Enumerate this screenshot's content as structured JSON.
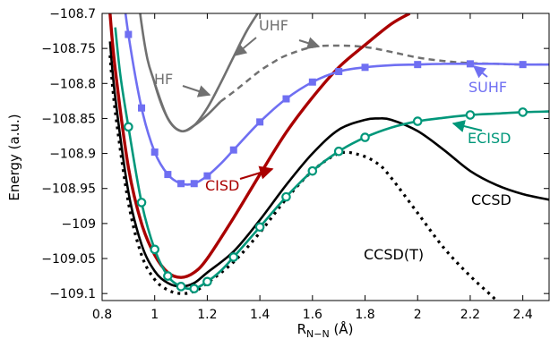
{
  "chart_data": {
    "type": "line",
    "xlabel": "R",
    "xlabel_sub": "N−N",
    "xlabel_unit": " (Å)",
    "ylabel": "Energy (a.u.)",
    "xlim": [
      0.8,
      2.5
    ],
    "ylim": [
      -109.11,
      -108.7
    ],
    "xticks": [
      0.8,
      1.0,
      1.2,
      1.4,
      1.6,
      1.8,
      2.0,
      2.2,
      2.4
    ],
    "xtick_labels": [
      "0.8",
      "1",
      "1.2",
      "1.4",
      "1.6",
      "1.8",
      "2",
      "2.2",
      "2.4"
    ],
    "yticks": [
      -108.7,
      -108.75,
      -108.8,
      -108.85,
      -108.9,
      -108.95,
      -109.0,
      -109.05,
      -109.1
    ],
    "ytick_labels": [
      "−108.7",
      "−108.75",
      "−108.8",
      "−108.85",
      "−108.9",
      "−108.95",
      "−109",
      "−109.05",
      "−109.1"
    ],
    "grid": false,
    "series": [
      {
        "name": "HF",
        "color": "#707070",
        "style": "solid",
        "marker": "none",
        "x": [
          0.85,
          0.95,
          1.0,
          1.05,
          1.1,
          1.15,
          1.2,
          1.25
        ],
        "y": [
          -108.4,
          -108.715,
          -108.8,
          -108.85,
          -108.868,
          -108.86,
          -108.845,
          -108.826
        ]
      },
      {
        "name": "UHF",
        "color": "#707070",
        "style": "solid",
        "marker": "none",
        "x": [
          1.0,
          1.05,
          1.1,
          1.15,
          1.2,
          1.25,
          1.3,
          1.35,
          1.4,
          1.45
        ],
        "y": [
          -108.8,
          -108.85,
          -108.868,
          -108.86,
          -108.835,
          -108.8,
          -108.762,
          -108.725,
          -108.695,
          -108.665
        ]
      },
      {
        "name": "UHF-dashed",
        "color": "#707070",
        "style": "dashed",
        "marker": "none",
        "x": [
          1.25,
          1.3,
          1.35,
          1.4,
          1.45,
          1.5,
          1.6,
          1.7,
          1.8,
          1.9,
          2.0,
          2.1,
          2.2,
          2.3,
          2.4,
          2.5
        ],
        "y": [
          -108.826,
          -108.812,
          -108.797,
          -108.782,
          -108.77,
          -108.76,
          -108.748,
          -108.746,
          -108.748,
          -108.755,
          -108.763,
          -108.768,
          -108.771,
          -108.772,
          -108.773,
          -108.773
        ]
      },
      {
        "name": "SUHF",
        "color": "#6f6ff2",
        "style": "solid",
        "marker": "square",
        "x": [
          0.9,
          0.95,
          1.0,
          1.05,
          1.1,
          1.15,
          1.2,
          1.3,
          1.4,
          1.5,
          1.6,
          1.7,
          1.8,
          2.0,
          2.2,
          2.4
        ],
        "y": [
          -108.73,
          -108.835,
          -108.898,
          -108.93,
          -108.943,
          -108.943,
          -108.932,
          -108.895,
          -108.855,
          -108.822,
          -108.798,
          -108.783,
          -108.777,
          -108.773,
          -108.772,
          -108.773
        ],
        "curve_x": [
          0.87,
          0.9,
          0.95,
          1.0,
          1.05,
          1.1,
          1.15,
          1.2,
          1.25,
          1.3,
          1.4,
          1.5,
          1.6,
          1.7,
          1.8,
          1.9,
          2.0,
          2.1,
          2.2,
          2.3,
          2.4,
          2.5
        ],
        "curve_y": [
          -108.64,
          -108.73,
          -108.835,
          -108.898,
          -108.93,
          -108.943,
          -108.943,
          -108.932,
          -108.915,
          -108.895,
          -108.855,
          -108.822,
          -108.798,
          -108.783,
          -108.777,
          -108.774,
          -108.773,
          -108.772,
          -108.772,
          -108.772,
          -108.773,
          -108.773
        ]
      },
      {
        "name": "CISD",
        "color": "#aa0000",
        "style": "solid",
        "marker": "none",
        "x": [
          0.83,
          0.85,
          0.9,
          0.95,
          1.0,
          1.05,
          1.1,
          1.15,
          1.2,
          1.3,
          1.4,
          1.5,
          1.6,
          1.7,
          1.8,
          1.9,
          1.97
        ],
        "y": [
          -108.7,
          -108.78,
          -108.92,
          -109.0,
          -109.045,
          -109.07,
          -109.077,
          -109.07,
          -109.05,
          -108.992,
          -108.93,
          -108.87,
          -108.82,
          -108.777,
          -108.745,
          -108.715,
          -108.7
        ]
      },
      {
        "name": "CCSD",
        "color": "#000000",
        "style": "solid",
        "marker": "none",
        "x": [
          0.83,
          0.85,
          0.9,
          0.95,
          1.0,
          1.05,
          1.1,
          1.15,
          1.2,
          1.3,
          1.4,
          1.5,
          1.6,
          1.7,
          1.8,
          1.85,
          1.9,
          2.0,
          2.1,
          2.2,
          2.3,
          2.4,
          2.5
        ],
        "y": [
          -108.74,
          -108.82,
          -108.955,
          -109.03,
          -109.068,
          -109.085,
          -109.09,
          -109.085,
          -109.07,
          -109.04,
          -108.995,
          -108.945,
          -108.9,
          -108.866,
          -108.852,
          -108.85,
          -108.852,
          -108.868,
          -108.895,
          -108.925,
          -108.945,
          -108.958,
          -108.966
        ]
      },
      {
        "name": "CCSD(T)",
        "color": "#000000",
        "style": "dotted",
        "marker": "none",
        "x": [
          0.83,
          0.85,
          0.9,
          0.95,
          1.0,
          1.05,
          1.1,
          1.15,
          1.2,
          1.3,
          1.4,
          1.5,
          1.6,
          1.7,
          1.78,
          1.85,
          1.9,
          2.0,
          2.1,
          2.2,
          2.3,
          2.4
        ],
        "y": [
          -108.76,
          -108.84,
          -108.97,
          -109.045,
          -109.08,
          -109.095,
          -109.1,
          -109.097,
          -109.085,
          -109.055,
          -109.013,
          -108.965,
          -108.925,
          -108.9,
          -108.902,
          -108.915,
          -108.935,
          -108.985,
          -109.035,
          -109.075,
          -109.11,
          -109.15
        ]
      },
      {
        "name": "ECISD",
        "color": "#00977a",
        "style": "solid",
        "marker": "circle",
        "x": [
          0.9,
          0.95,
          1.0,
          1.05,
          1.1,
          1.15,
          1.2,
          1.3,
          1.4,
          1.5,
          1.6,
          1.7,
          1.8,
          2.0,
          2.2,
          2.4
        ],
        "y": [
          -108.862,
          -108.97,
          -109.037,
          -109.075,
          -109.09,
          -109.093,
          -109.083,
          -109.048,
          -109.005,
          -108.962,
          -108.925,
          -108.897,
          -108.877,
          -108.854,
          -108.845,
          -108.841
        ],
        "curve_x": [
          0.85,
          0.87,
          0.9,
          0.95,
          1.0,
          1.05,
          1.1,
          1.15,
          1.2,
          1.25,
          1.3,
          1.4,
          1.5,
          1.6,
          1.7,
          1.8,
          1.9,
          2.0,
          2.1,
          2.2,
          2.3,
          2.4,
          2.5
        ],
        "curve_y": [
          -108.72,
          -108.79,
          -108.862,
          -108.97,
          -109.037,
          -109.075,
          -109.09,
          -109.093,
          -109.083,
          -109.068,
          -109.048,
          -109.005,
          -108.962,
          -108.925,
          -108.897,
          -108.877,
          -108.863,
          -108.854,
          -108.849,
          -108.845,
          -108.843,
          -108.841,
          -108.84
        ]
      }
    ],
    "labels": [
      {
        "text": "UHF",
        "color": "#707070"
      },
      {
        "text": "HF",
        "color": "#707070"
      },
      {
        "text": "SUHF",
        "color": "#6f6ff2"
      },
      {
        "text": "ECISD",
        "color": "#00977a"
      },
      {
        "text": "CISD",
        "color": "#aa0000"
      },
      {
        "text": "CCSD",
        "color": "#000000"
      },
      {
        "text": "CCSD(T)",
        "color": "#000000"
      }
    ]
  }
}
